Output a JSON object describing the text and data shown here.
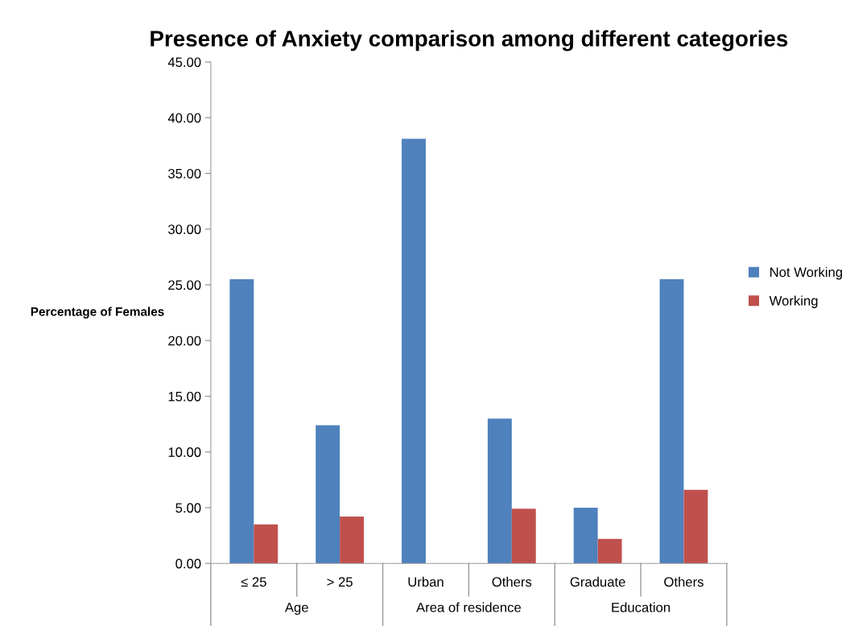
{
  "chart_data": {
    "type": "bar",
    "title": "Presence of Anxiety comparison among different categories",
    "ylabel": "Percentage of Females",
    "categories": [
      "≤ 25",
      "> 25",
      "Urban",
      "Others",
      "Graduate",
      "Others"
    ],
    "series": [
      {
        "name": "Not Working",
        "color": "#4f81bd",
        "values": [
          25.5,
          12.4,
          38.1,
          13.0,
          5.0,
          25.5
        ]
      },
      {
        "name": "Working",
        "color": "#c0504d",
        "values": [
          3.5,
          4.2,
          0,
          4.9,
          2.2,
          6.6
        ]
      }
    ],
    "annotations": [
      "Age",
      "Area of residence",
      "Education"
    ],
    "ylim": [
      0,
      45
    ],
    "yticks": [
      {
        "value": 0,
        "label": "0.00"
      },
      {
        "value": 5,
        "label": "5.00"
      },
      {
        "value": 10,
        "label": "10.00"
      },
      {
        "value": 15,
        "label": "15.00"
      },
      {
        "value": 20,
        "label": "20.00"
      },
      {
        "value": 25,
        "label": "25.00"
      },
      {
        "value": 30,
        "label": "30.00"
      },
      {
        "value": 35,
        "label": "35.00"
      },
      {
        "value": 40,
        "label": "40.00"
      },
      {
        "value": 45,
        "label": "45.00"
      }
    ],
    "legend": "right",
    "grid": false
  }
}
